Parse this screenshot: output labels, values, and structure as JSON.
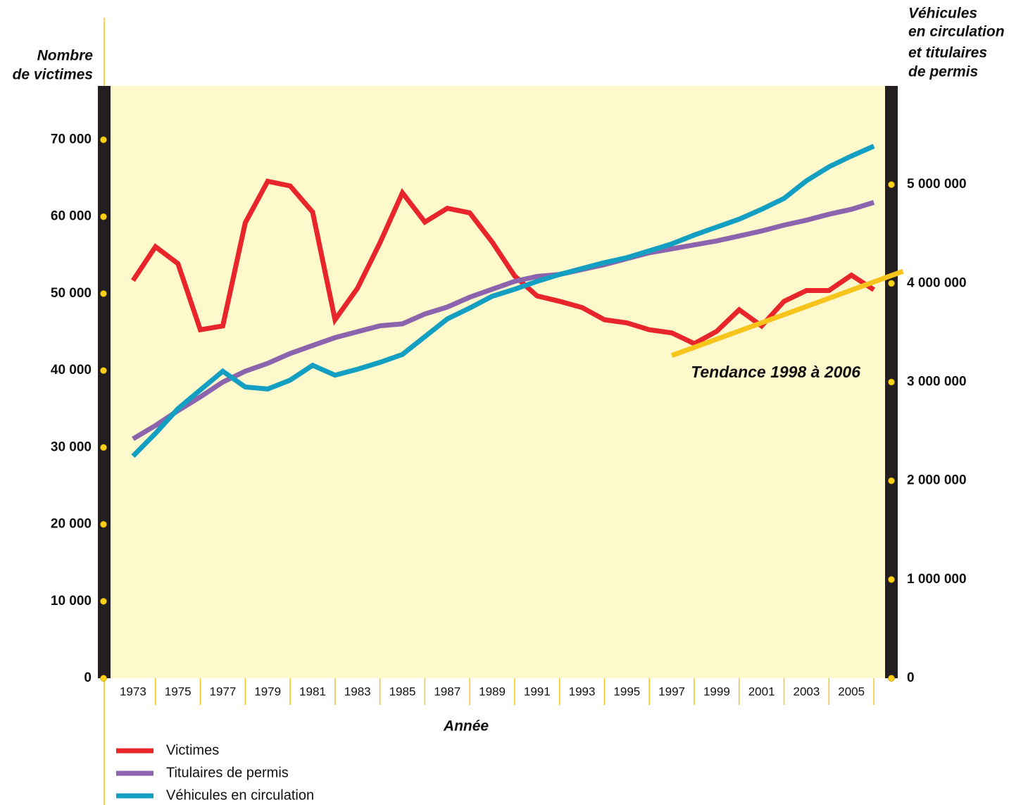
{
  "chart_data": {
    "type": "line",
    "left_axis_title": [
      "Nombre",
      "de victimes"
    ],
    "right_axis_title": [
      "Véhicules",
      "en circulation",
      "et titulaires",
      "de permis"
    ],
    "xlabel": "Année",
    "x": [
      1973,
      1974,
      1975,
      1976,
      1977,
      1978,
      1979,
      1980,
      1981,
      1982,
      1983,
      1984,
      1985,
      1986,
      1987,
      1988,
      1989,
      1990,
      1991,
      1992,
      1993,
      1994,
      1995,
      1996,
      1997,
      1998,
      1999,
      2000,
      2001,
      2002,
      2003,
      2004,
      2005,
      2006
    ],
    "xlim": [
      1972,
      2006.5
    ],
    "xticks": [
      1973,
      1975,
      1977,
      1979,
      1981,
      1983,
      1985,
      1987,
      1989,
      1991,
      1993,
      1995,
      1997,
      1999,
      2001,
      2003,
      2005
    ],
    "ylim": [
      0,
      77000
    ],
    "yticks": [
      0,
      {
        "value": 10000,
        "label": "10 000"
      },
      {
        "value": 20000,
        "label": "20 000"
      },
      {
        "value": 30000,
        "label": "30 000"
      },
      {
        "value": 40000,
        "label": "40 000"
      },
      {
        "value": 50000,
        "label": "50 000"
      },
      {
        "value": 60000,
        "label": "60 000"
      },
      {
        "value": 70000,
        "label": "70 000"
      }
    ],
    "y2lim": [
      0,
      6000000
    ],
    "y2ticks": [
      0,
      {
        "value": 1000000,
        "label": "1 000 000"
      },
      {
        "value": 2000000,
        "label": "2 000 000"
      },
      {
        "value": 3000000,
        "label": "3 000 000"
      },
      {
        "value": 4000000,
        "label": "4 000 000"
      },
      {
        "value": 5000000,
        "label": "5 000 000"
      }
    ],
    "series": [
      {
        "name": "Victimes",
        "color": "#e8252b",
        "axis": "y",
        "values": [
          51700,
          56100,
          53900,
          45300,
          45800,
          59200,
          64600,
          64000,
          60600,
          46600,
          50700,
          56600,
          63100,
          59300,
          61100,
          60500,
          56700,
          52300,
          49700,
          49000,
          48200,
          46600,
          46200,
          45300,
          44900,
          43500,
          45100,
          47900,
          45800,
          49000,
          50400,
          50400,
          52400,
          50500
        ]
      },
      {
        "name": "Titulaires de permis",
        "color": "#8b64ad",
        "axis": "y2",
        "values": [
          2425000,
          2560000,
          2710000,
          2850000,
          3000000,
          3110000,
          3190000,
          3290000,
          3370000,
          3450000,
          3510000,
          3570000,
          3590000,
          3690000,
          3760000,
          3860000,
          3940000,
          4020000,
          4070000,
          4090000,
          4140000,
          4190000,
          4250000,
          4310000,
          4350000,
          4390000,
          4430000,
          4480000,
          4530000,
          4590000,
          4640000,
          4700000,
          4750000,
          4820000
        ]
      },
      {
        "name": "Véhicules en circulation",
        "color": "#139fc1",
        "axis": "y2",
        "values": [
          2250000,
          2480000,
          2730000,
          2920000,
          3110000,
          2950000,
          2930000,
          3020000,
          3170000,
          3070000,
          3130000,
          3200000,
          3280000,
          3460000,
          3640000,
          3750000,
          3870000,
          3940000,
          4020000,
          4090000,
          4150000,
          4210000,
          4260000,
          4330000,
          4400000,
          4490000,
          4570000,
          4650000,
          4750000,
          4860000,
          5040000,
          5180000,
          5290000,
          5390000
        ]
      }
    ],
    "trend": {
      "label": "Tendance 1998 à 2006",
      "color": "#f7c41c",
      "x": [
        1997,
        2007.3
      ],
      "values": [
        41950,
        52900
      ]
    }
  }
}
